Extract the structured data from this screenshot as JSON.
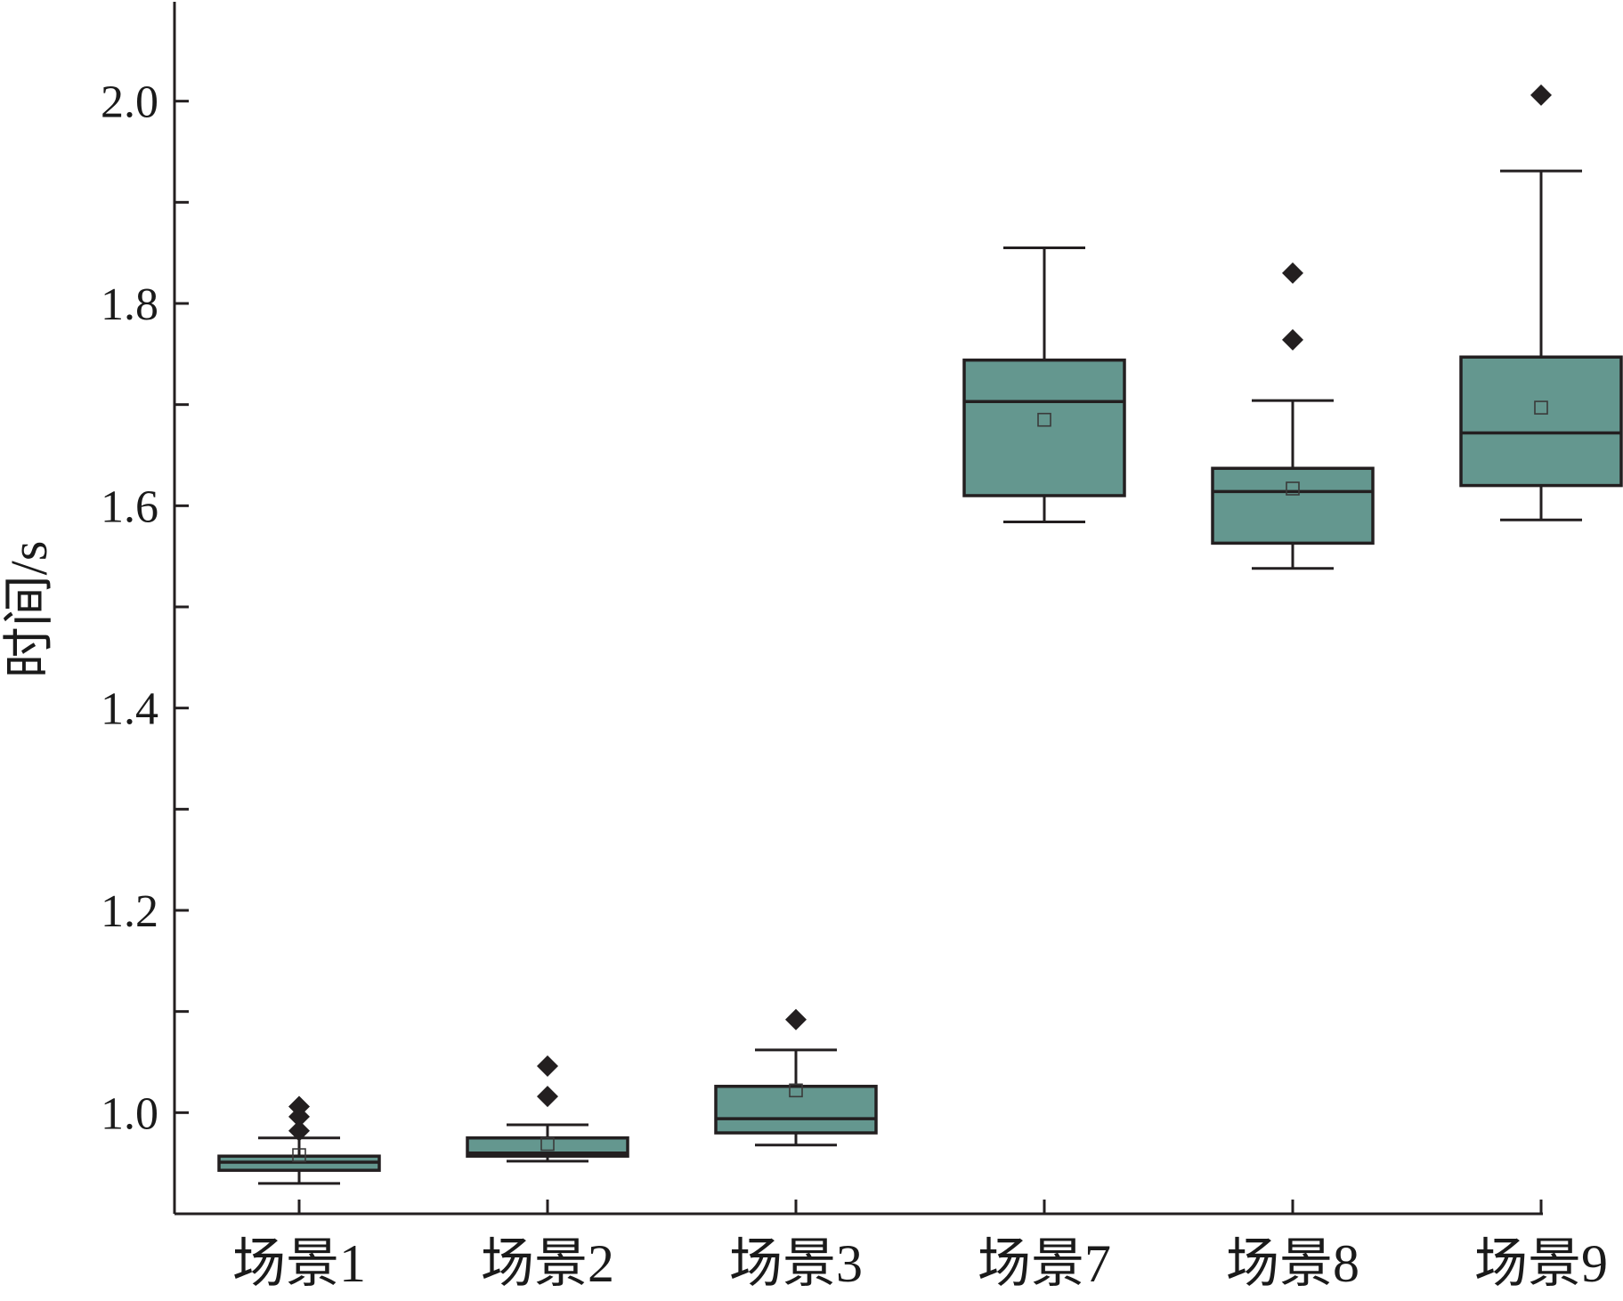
{
  "chart_data": {
    "type": "box",
    "title": "",
    "xlabel": "",
    "ylabel": "时间/s",
    "ylim": [
      0.9,
      2.1
    ],
    "yticks": [
      1.0,
      1.2,
      1.4,
      1.6,
      1.8,
      2.0
    ],
    "ytick_labels": [
      "1.0",
      "1.2",
      "1.4",
      "1.6",
      "1.8",
      "2.0"
    ],
    "y_minor_ticks": [
      1.1,
      1.3,
      1.5,
      1.7,
      1.9
    ],
    "grid": false,
    "box_color": "#64978f",
    "edge_color": "#231f20",
    "categories": [
      "场景1",
      "场景2",
      "场景3",
      "场景7",
      "场景8",
      "场景9"
    ],
    "boxes": [
      {
        "whisker_low": 0.93,
        "q1": 0.943,
        "median": 0.951,
        "q3": 0.957,
        "whisker_high": 0.975,
        "mean": 0.958,
        "outliers": [
          0.982,
          0.996,
          1.006
        ]
      },
      {
        "whisker_low": 0.952,
        "q1": 0.957,
        "median": 0.96,
        "q3": 0.975,
        "whisker_high": 0.988,
        "mean": 0.969,
        "outliers": [
          1.016,
          1.046
        ]
      },
      {
        "whisker_low": 0.968,
        "q1": 0.98,
        "median": 0.994,
        "q3": 1.026,
        "whisker_high": 1.062,
        "mean": 1.022,
        "outliers": [
          1.092
        ]
      },
      {
        "whisker_low": 1.584,
        "q1": 1.61,
        "median": 1.703,
        "q3": 1.744,
        "whisker_high": 1.855,
        "mean": 1.685,
        "outliers": []
      },
      {
        "whisker_low": 1.538,
        "q1": 1.563,
        "median": 1.614,
        "q3": 1.637,
        "whisker_high": 1.704,
        "mean": 1.617,
        "outliers": [
          1.764,
          1.83
        ]
      },
      {
        "whisker_low": 1.586,
        "q1": 1.62,
        "median": 1.672,
        "q3": 1.747,
        "whisker_high": 1.931,
        "mean": 1.697,
        "outliers": [
          2.006
        ]
      }
    ]
  }
}
